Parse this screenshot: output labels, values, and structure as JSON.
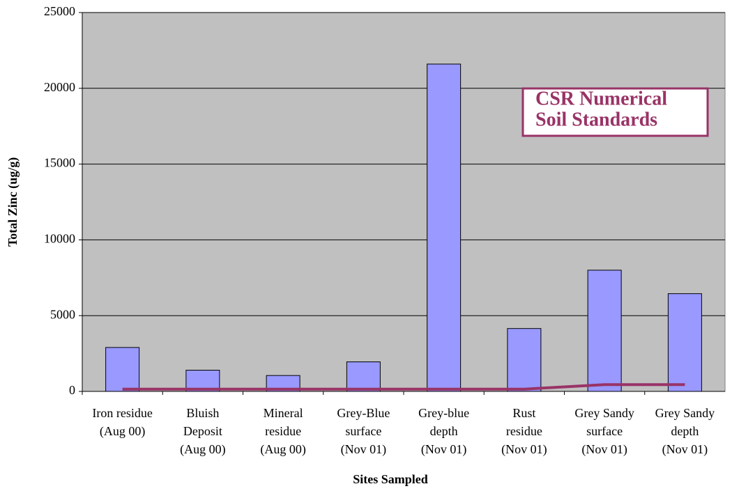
{
  "chart_data": {
    "type": "bar",
    "x_label": "Sites Sampled",
    "y_label": "Total Zinc (ug/g)",
    "annotation": [
      "CSR Numerical",
      "Soil Standards"
    ],
    "categories": [
      [
        "Iron residue",
        "(Aug 00)"
      ],
      [
        "Bluish",
        "Deposit",
        "(Aug 00)"
      ],
      [
        "Mineral",
        "residue",
        "(Aug 00)"
      ],
      [
        "Grey-Blue",
        "surface",
        "(Nov 01)"
      ],
      [
        "Grey-blue",
        "depth",
        "(Nov 01)"
      ],
      [
        "Rust",
        "residue",
        "(Nov 01)"
      ],
      [
        "Grey Sandy",
        "surface",
        "(Nov 01)"
      ],
      [
        "Grey Sandy",
        "depth",
        "(Nov 01)"
      ]
    ],
    "series": [
      {
        "type": "bar",
        "color": "#9999ff",
        "values": [
          2900,
          1400,
          1050,
          1950,
          21600,
          4150,
          8000,
          6450
        ]
      },
      {
        "type": "line",
        "color": "#993366",
        "values": [
          150,
          150,
          150,
          150,
          150,
          150,
          450,
          450
        ]
      }
    ],
    "ylim": [
      0,
      25000
    ],
    "yticks": [
      0,
      5000,
      10000,
      15000,
      20000,
      25000
    ],
    "grid": true
  }
}
